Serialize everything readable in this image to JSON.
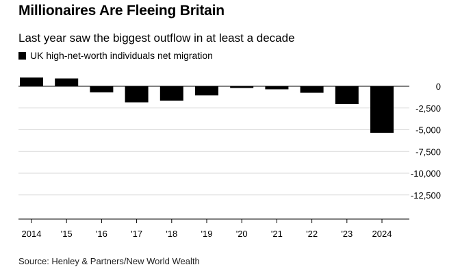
{
  "header": {
    "title": "Millionaires Are Fleeing Britain",
    "subtitle": "Last year saw the biggest outflow in at least a decade"
  },
  "legend": {
    "label": "UK high-net-worth individuals net migration",
    "color": "#000000"
  },
  "source": "Source: Henley & Partners/New World Wealth",
  "chart_data": {
    "type": "bar",
    "categories": [
      "2014",
      "'15",
      "'16",
      "'17",
      "'18",
      "'19",
      "'20",
      "'21",
      "'22",
      "'23",
      "2024"
    ],
    "series": [
      {
        "name": "UK high-net-worth individuals net migration",
        "values": [
          1000,
          900,
          -700,
          -1850,
          -1650,
          -1050,
          -200,
          -350,
          -750,
          -2050,
          -5350
        ],
        "color": "#000000"
      }
    ],
    "yticks": [
      0,
      -2500,
      -5000,
      -7500,
      -10000,
      -12500
    ],
    "ytick_labels": [
      "0",
      "-2,500",
      "-5,000",
      "-7,500",
      "-10,000",
      "-12,500"
    ],
    "ylim": [
      -12500,
      1000
    ],
    "grid": true,
    "legend_position": "top-left",
    "title": "Millionaires Are Fleeing Britain",
    "subtitle": "Last year saw the biggest outflow in at least a decade"
  }
}
